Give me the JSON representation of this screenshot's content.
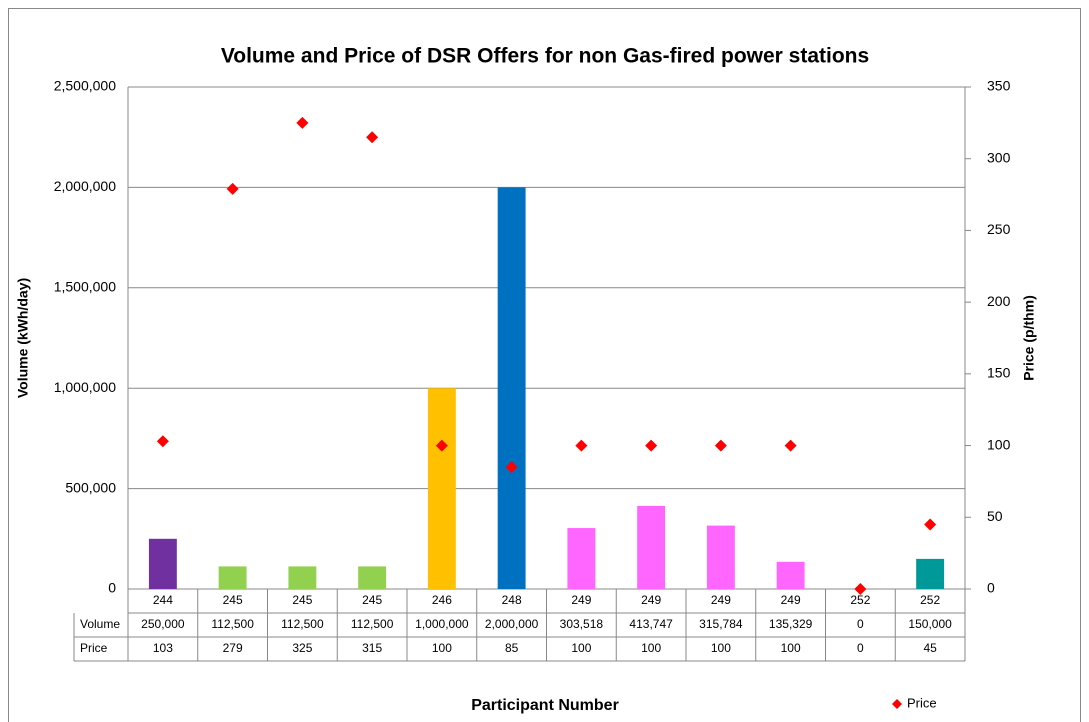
{
  "chart_data": {
    "type": "bar",
    "title": "Volume and Price of DSR Offers for non Gas-fired power stations",
    "x_label": "Participant Number",
    "y_label": "Volume (kWh/day)",
    "y2_label": "Price (p/thm)",
    "categories": [
      "244",
      "245",
      "245",
      "245",
      "246",
      "248",
      "249",
      "249",
      "249",
      "249",
      "252",
      "252"
    ],
    "series": [
      {
        "name": "Volume",
        "type": "bar",
        "colors": [
          "#7030a0",
          "#92d050",
          "#92d050",
          "#92d050",
          "#ffc000",
          "#0070c0",
          "#ff66ff",
          "#ff66ff",
          "#ff66ff",
          "#ff66ff",
          "#009999",
          "#009999"
        ],
        "values": [
          250000,
          112500,
          112500,
          112500,
          1000000,
          2000000,
          303518,
          413747,
          315784,
          135329,
          0,
          150000
        ],
        "value_labels": [
          "250,000",
          "112,500",
          "112,500",
          "112,500",
          "1,000,000",
          "2,000,000",
          "303,518",
          "413,747",
          "315,784",
          "135,329",
          "0",
          "150,000"
        ]
      },
      {
        "name": "Price",
        "type": "scatter",
        "color": "#ff0000",
        "axis": "y2",
        "values": [
          103,
          279,
          325,
          315,
          100,
          85,
          100,
          100,
          100,
          100,
          0,
          45
        ]
      }
    ],
    "ylim": [
      0,
      2500000
    ],
    "yticks": [
      0,
      {
        "value": 500000,
        "label": "500,000"
      },
      {
        "value": 1000000,
        "label": "1,000,000"
      },
      {
        "value": 1500000,
        "label": "1,500,000"
      },
      {
        "value": 2000000,
        "label": "2,000,000"
      },
      {
        "value": 2500000,
        "label": "2,500,000"
      }
    ],
    "y2lim": [
      0,
      350
    ],
    "y2ticks": [
      0,
      50,
      100,
      150,
      200,
      250,
      300,
      350
    ],
    "grid": true,
    "legend": "bottom-right"
  }
}
